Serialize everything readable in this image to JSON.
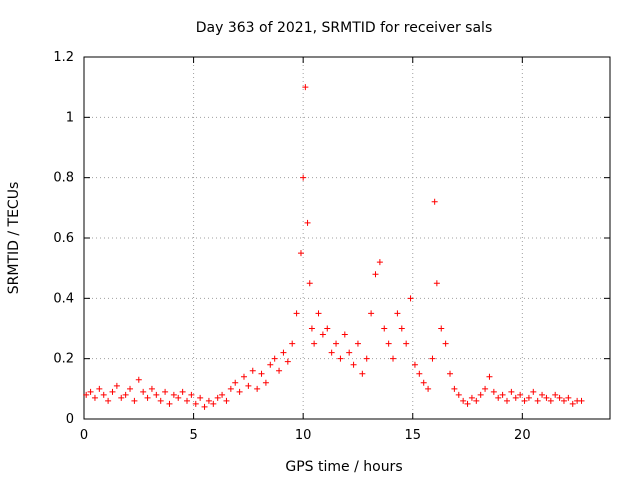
{
  "chart_data": {
    "type": "scatter",
    "title": "Day 363 of 2021, SRMTID for receiver sals",
    "xlabel": "GPS time / hours",
    "ylabel": "SRMTID / TECUs",
    "xlim": [
      0,
      24
    ],
    "ylim": [
      0,
      1.2
    ],
    "x_ticks": [
      0,
      5,
      10,
      15,
      20
    ],
    "y_ticks": [
      0,
      0.2,
      0.4,
      0.6,
      0.8,
      1,
      1.2
    ],
    "y_tick_labels": [
      "0",
      "0.2",
      "0.4",
      "0.6",
      "0.8",
      "1",
      "1.2"
    ],
    "grid": true,
    "marker": "+",
    "color": "#ff0000",
    "series": [
      {
        "name": "SRMTID",
        "x": [
          0.1,
          0.3,
          0.5,
          0.7,
          0.9,
          1.1,
          1.3,
          1.5,
          1.7,
          1.9,
          2.1,
          2.3,
          2.5,
          2.7,
          2.9,
          3.1,
          3.3,
          3.5,
          3.7,
          3.9,
          4.1,
          4.3,
          4.5,
          4.7,
          4.9,
          5.1,
          5.3,
          5.5,
          5.7,
          5.9,
          6.1,
          6.3,
          6.5,
          6.7,
          6.9,
          7.1,
          7.3,
          7.5,
          7.7,
          7.9,
          8.1,
          8.3,
          8.5,
          8.7,
          8.9,
          9.1,
          9.3,
          9.5,
          9.7,
          9.9,
          10.0,
          10.1,
          10.2,
          10.3,
          10.4,
          10.5,
          10.7,
          10.9,
          11.1,
          11.3,
          11.5,
          11.7,
          11.9,
          12.1,
          12.3,
          12.5,
          12.7,
          12.9,
          13.1,
          13.3,
          13.5,
          13.7,
          13.9,
          14.1,
          14.3,
          14.5,
          14.7,
          14.9,
          15.1,
          15.3,
          15.5,
          15.7,
          15.9,
          16.0,
          16.1,
          16.3,
          16.5,
          16.7,
          16.9,
          17.1,
          17.3,
          17.5,
          17.7,
          17.9,
          18.1,
          18.3,
          18.5,
          18.7,
          18.9,
          19.1,
          19.3,
          19.5,
          19.7,
          19.9,
          20.1,
          20.3,
          20.5,
          20.7,
          20.9,
          21.1,
          21.3,
          21.5,
          21.7,
          21.9,
          22.1,
          22.3,
          22.5,
          22.7
        ],
        "y": [
          0.08,
          0.09,
          0.07,
          0.1,
          0.08,
          0.06,
          0.09,
          0.11,
          0.07,
          0.08,
          0.1,
          0.06,
          0.13,
          0.09,
          0.07,
          0.1,
          0.08,
          0.06,
          0.09,
          0.05,
          0.08,
          0.07,
          0.09,
          0.06,
          0.08,
          0.05,
          0.07,
          0.04,
          0.06,
          0.05,
          0.07,
          0.08,
          0.06,
          0.1,
          0.12,
          0.09,
          0.14,
          0.11,
          0.16,
          0.1,
          0.15,
          0.12,
          0.18,
          0.2,
          0.16,
          0.22,
          0.19,
          0.25,
          0.35,
          0.55,
          0.8,
          1.1,
          0.65,
          0.45,
          0.3,
          0.25,
          0.35,
          0.28,
          0.3,
          0.22,
          0.25,
          0.2,
          0.28,
          0.22,
          0.18,
          0.25,
          0.15,
          0.2,
          0.35,
          0.48,
          0.52,
          0.3,
          0.25,
          0.2,
          0.35,
          0.3,
          0.25,
          0.4,
          0.18,
          0.15,
          0.12,
          0.1,
          0.2,
          0.72,
          0.45,
          0.3,
          0.25,
          0.15,
          0.1,
          0.08,
          0.06,
          0.05,
          0.07,
          0.06,
          0.08,
          0.1,
          0.14,
          0.09,
          0.07,
          0.08,
          0.06,
          0.09,
          0.07,
          0.08,
          0.06,
          0.07,
          0.09,
          0.06,
          0.08,
          0.07,
          0.06,
          0.08,
          0.07,
          0.06,
          0.07,
          0.05,
          0.06,
          0.06
        ]
      }
    ]
  }
}
